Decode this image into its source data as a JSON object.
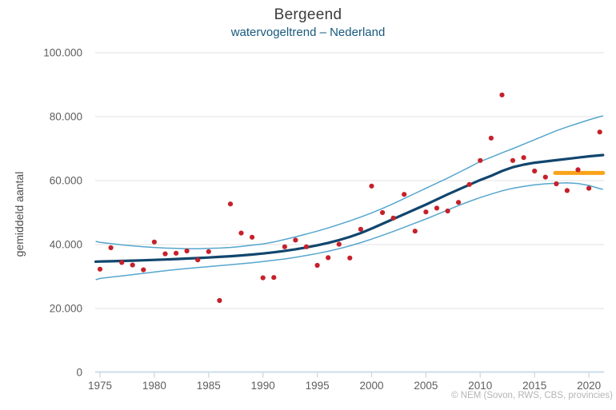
{
  "header": {
    "title": "Bergeend",
    "subtitle": "watervogeltrend – Nederland"
  },
  "footer": {
    "copyright": "© NEM (Sovon, RWS, CBS, provincies)"
  },
  "colors": {
    "point": "#c5212b",
    "trend": "#11466e",
    "confidence_band": "#55a6cd",
    "recent_mean": "#f9a31a",
    "gridline": "#e8e8e8",
    "axis": "#ccdcec",
    "subtitle_text": "#175a7e"
  },
  "chart_data": {
    "type": "scatter",
    "title": "Bergeend",
    "subtitle": "watervogeltrend – Nederland",
    "xlabel": "",
    "ylabel": "gemiddeld aantal",
    "xlim": [
      1974.55,
      2021.4
    ],
    "ylim": [
      0,
      100000
    ],
    "grid": "horizontal",
    "legend_position": "none",
    "x_ticks": [
      {
        "value": 1975,
        "label": "1975"
      },
      {
        "value": 1980,
        "label": "1980"
      },
      {
        "value": 1985,
        "label": "1985"
      },
      {
        "value": 1990,
        "label": "1990"
      },
      {
        "value": 1995,
        "label": "1995"
      },
      {
        "value": 2000,
        "label": "2000"
      },
      {
        "value": 2005,
        "label": "2005"
      },
      {
        "value": 2010,
        "label": "2010"
      },
      {
        "value": 2015,
        "label": "2015"
      },
      {
        "value": 2020,
        "label": "2020"
      }
    ],
    "y_ticks": [
      {
        "value": 0,
        "label": "0"
      },
      {
        "value": 20000,
        "label": "20.000"
      },
      {
        "value": 40000,
        "label": "40.000"
      },
      {
        "value": 60000,
        "label": "60.000"
      },
      {
        "value": 80000,
        "label": "80.000"
      },
      {
        "value": 100000,
        "label": "100.000"
      }
    ],
    "points": {
      "x": [
        1975,
        1976,
        1977,
        1978,
        1979,
        1980,
        1981,
        1982,
        1983,
        1984,
        1985,
        1986,
        1987,
        1988,
        1989,
        1990,
        1991,
        1992,
        1993,
        1994,
        1995,
        1996,
        1997,
        1998,
        1999,
        2000,
        2001,
        2002,
        2003,
        2004,
        2005,
        2006,
        2007,
        2008,
        2009,
        2010,
        2011,
        2012,
        2013,
        2014,
        2015,
        2016,
        2017,
        2018,
        2019,
        2020,
        2021
      ],
      "y": [
        32300,
        39000,
        34400,
        33600,
        32100,
        40800,
        37100,
        37300,
        38000,
        35200,
        37800,
        22500,
        52700,
        43600,
        42300,
        29600,
        29700,
        39300,
        41400,
        39300,
        33500,
        35900,
        40100,
        35800,
        44800,
        58300,
        50000,
        48300,
        55700,
        44200,
        50200,
        51400,
        50500,
        53200,
        58800,
        66300,
        73300,
        86800,
        66300,
        67200,
        63000,
        61100,
        59000,
        56900,
        63400,
        57600,
        75200
      ]
    },
    "trend": {
      "x": [
        1974.6,
        1975,
        1976,
        1977,
        1978,
        1979,
        1980,
        1981,
        1982,
        1983,
        1984,
        1985,
        1986,
        1987,
        1988,
        1989,
        1990,
        1991,
        1992,
        1993,
        1994,
        1995,
        1996,
        1997,
        1998,
        1999,
        2000,
        2001,
        2002,
        2003,
        2004,
        2005,
        2006,
        2007,
        2008,
        2009,
        2010,
        2011,
        2012,
        2013,
        2014,
        2015,
        2016,
        2017,
        2018,
        2019,
        2020,
        2021,
        2021.3
      ],
      "y": [
        34650,
        34700,
        34780,
        34870,
        34970,
        35080,
        35200,
        35330,
        35470,
        35620,
        35780,
        35950,
        36140,
        36350,
        36590,
        36870,
        37200,
        37580,
        38020,
        38530,
        39110,
        39770,
        40520,
        41400,
        42400,
        43600,
        45000,
        46500,
        48000,
        49500,
        51000,
        52500,
        54100,
        55700,
        57200,
        58700,
        60200,
        61500,
        63000,
        64200,
        65000,
        65600,
        66000,
        66400,
        66800,
        67200,
        67600,
        67900,
        68000
      ]
    },
    "upper_band": {
      "x": [
        1974.6,
        1975,
        1976,
        1977,
        1978,
        1979,
        1980,
        1981,
        1982,
        1983,
        1984,
        1985,
        1986,
        1987,
        1988,
        1989,
        1990,
        1991,
        1992,
        1993,
        1994,
        1995,
        1996,
        1997,
        1998,
        1999,
        2000,
        2001,
        2002,
        2003,
        2004,
        2005,
        2006,
        2007,
        2008,
        2009,
        2010,
        2011,
        2012,
        2013,
        2014,
        2015,
        2016,
        2017,
        2018,
        2019,
        2020,
        2021,
        2021.3
      ],
      "y": [
        41000,
        40700,
        40300,
        39900,
        39600,
        39300,
        39100,
        38900,
        38800,
        38700,
        38700,
        38800,
        38900,
        39100,
        39400,
        39800,
        40200,
        40800,
        41600,
        42400,
        43300,
        44200,
        45200,
        46300,
        47400,
        48600,
        49900,
        51300,
        52800,
        54400,
        56000,
        57600,
        59200,
        60800,
        62500,
        64200,
        66000,
        67300,
        68700,
        70000,
        71400,
        72800,
        74200,
        75600,
        76800,
        77900,
        79000,
        80000,
        80300
      ]
    },
    "lower_band": {
      "x": [
        1974.6,
        1975,
        1976,
        1977,
        1978,
        1979,
        1980,
        1981,
        1982,
        1983,
        1984,
        1985,
        1986,
        1987,
        1988,
        1989,
        1990,
        1991,
        1992,
        1993,
        1994,
        1995,
        1996,
        1997,
        1998,
        1999,
        2000,
        2001,
        2002,
        2003,
        2004,
        2005,
        2006,
        2007,
        2008,
        2009,
        2010,
        2011,
        2012,
        2013,
        2014,
        2015,
        2016,
        2017,
        2018,
        2019,
        2020,
        2021,
        2021.3
      ],
      "y": [
        29000,
        29400,
        29800,
        30200,
        30600,
        31000,
        31400,
        31800,
        32200,
        32500,
        32800,
        33100,
        33400,
        33700,
        34000,
        34300,
        34700,
        35100,
        35500,
        36000,
        36600,
        37200,
        37900,
        38700,
        39600,
        40600,
        41700,
        42900,
        44100,
        45400,
        46700,
        48000,
        49400,
        50800,
        52200,
        53500,
        54700,
        55800,
        56800,
        57600,
        58200,
        58700,
        59000,
        59200,
        59300,
        59100,
        58500,
        57500,
        57300
      ]
    },
    "recent_mean_line": {
      "x_start": 2016.9,
      "x_end": 2021.3,
      "value": 62400
    }
  }
}
